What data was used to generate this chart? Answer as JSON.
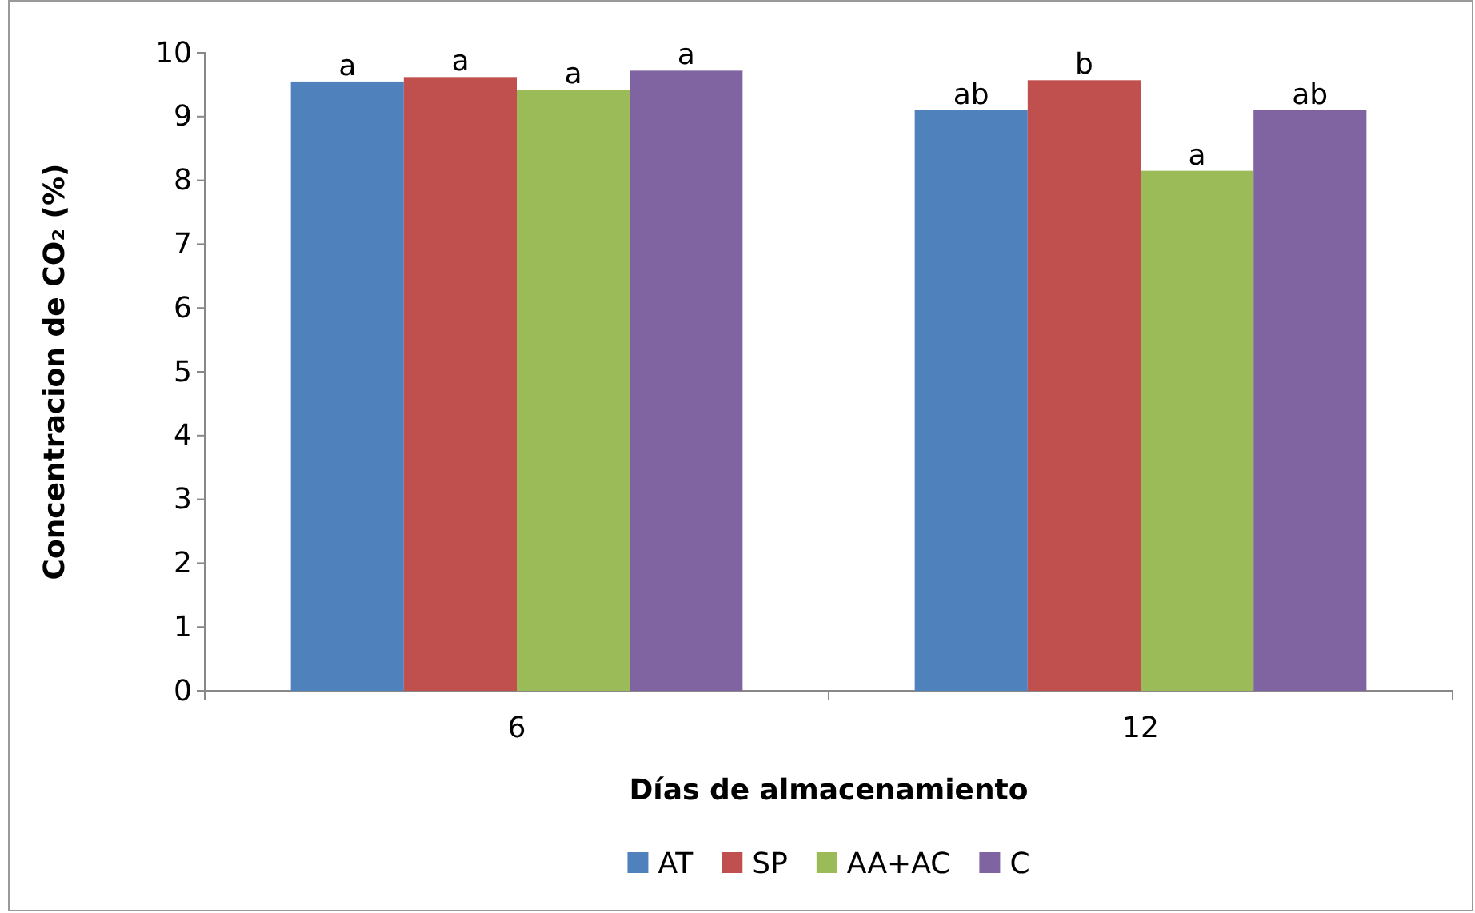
{
  "chart_data": {
    "type": "bar",
    "xlabel": "Días de almacenamiento",
    "ylabel": "Concentracion de CO₂ (%)",
    "categories": [
      "6",
      "12"
    ],
    "ylim": [
      0,
      10
    ],
    "yticks": [
      0,
      1,
      2,
      3,
      4,
      5,
      6,
      7,
      8,
      9,
      10
    ],
    "grid": false,
    "legend": "bottom",
    "series": [
      {
        "name": "AT",
        "color": "#4f81bd",
        "values": [
          9.55,
          9.1
        ],
        "value_labels": [
          "a",
          "ab"
        ]
      },
      {
        "name": "SP",
        "color": "#c0504d",
        "values": [
          9.62,
          9.57
        ],
        "value_labels": [
          "a",
          "b"
        ]
      },
      {
        "name": "AA+AC",
        "color": "#9bbb59",
        "values": [
          9.42,
          8.15
        ],
        "value_labels": [
          "a",
          "a"
        ]
      },
      {
        "name": "C",
        "color": "#8064a2",
        "values": [
          9.72,
          9.1
        ],
        "value_labels": [
          "a",
          "ab"
        ]
      }
    ]
  }
}
